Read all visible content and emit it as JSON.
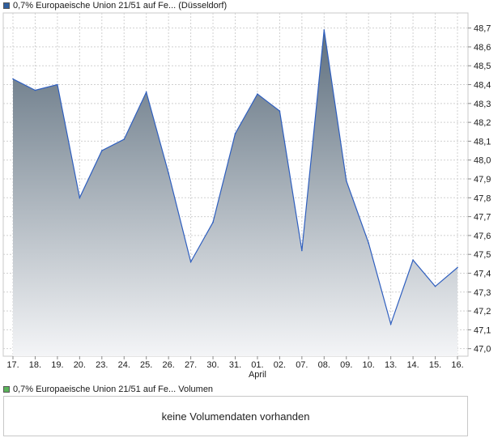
{
  "legend": {
    "price_label": "0,7% Europaeische Union 21/51 auf Fe... (Düsseldorf)",
    "volume_label": "0,7% Europaeische Union 21/51 auf Fe... Volumen"
  },
  "volume": {
    "message": "keine Volumendaten vorhanden"
  },
  "colors": {
    "line": "#2f5fbf",
    "fill_top": "#5e6f7e",
    "fill_bottom": "#f4f5f7",
    "grid": "#d0d0d0",
    "frame": "#c8c8c8"
  },
  "chart_data": {
    "type": "area",
    "title": "",
    "xlabel": "",
    "ylabel": "",
    "ylim": [
      46.96,
      48.78
    ],
    "y_ticks": [
      "47,0",
      "47,1",
      "47,2",
      "47,3",
      "47,4",
      "47,5",
      "47,6",
      "47,7",
      "47,8",
      "47,9",
      "48,0",
      "48,1",
      "48,2",
      "48,3",
      "48,4",
      "48,5",
      "48,6",
      "48,7"
    ],
    "month_label": "April",
    "month_label_under": "01.",
    "grid": true,
    "legend_position": "top-left",
    "categories": [
      "17.",
      "18.",
      "19.",
      "20.",
      "23.",
      "24.",
      "25.",
      "26.",
      "27.",
      "30.",
      "31.",
      "01.",
      "02.",
      "07.",
      "08.",
      "09.",
      "10.",
      "13.",
      "14.",
      "15.",
      "16."
    ],
    "series": [
      {
        "values": [
          48.43,
          48.37,
          48.4,
          47.8,
          48.05,
          48.11,
          48.36,
          47.93,
          47.46,
          47.67,
          48.14,
          48.35,
          48.26,
          47.52,
          48.69,
          47.89,
          47.56,
          47.13,
          47.47,
          47.33,
          47.43
        ]
      }
    ]
  }
}
